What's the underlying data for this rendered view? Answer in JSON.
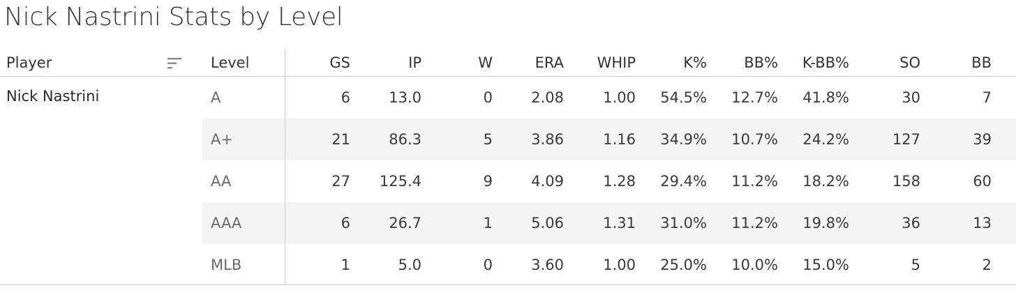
{
  "title": "Nick Nastrini Stats by Level",
  "headers": {
    "player": "Player",
    "level": "Level",
    "gs": "GS",
    "ip": "IP",
    "w": "W",
    "era": "ERA",
    "whip": "WHIP",
    "k_pct": "K%",
    "bb_pct": "BB%",
    "k_bb_pct": "K-BB%",
    "so": "SO",
    "bb": "BB"
  },
  "sort_icon": "sort-icon",
  "player": "Nick Nastrini",
  "rows": [
    {
      "level": "A",
      "gs": "6",
      "ip": "13.0",
      "w": "0",
      "era": "2.08",
      "whip": "1.00",
      "k_pct": "54.5%",
      "bb_pct": "12.7%",
      "k_bb_pct": "41.8%",
      "so": "30",
      "bb": "7"
    },
    {
      "level": "A+",
      "gs": "21",
      "ip": "86.3",
      "w": "5",
      "era": "3.86",
      "whip": "1.16",
      "k_pct": "34.9%",
      "bb_pct": "10.7%",
      "k_bb_pct": "24.2%",
      "so": "127",
      "bb": "39"
    },
    {
      "level": "AA",
      "gs": "27",
      "ip": "125.4",
      "w": "9",
      "era": "4.09",
      "whip": "1.28",
      "k_pct": "29.4%",
      "bb_pct": "11.2%",
      "k_bb_pct": "18.2%",
      "so": "158",
      "bb": "60"
    },
    {
      "level": "AAA",
      "gs": "6",
      "ip": "26.7",
      "w": "1",
      "era": "5.06",
      "whip": "1.31",
      "k_pct": "31.0%",
      "bb_pct": "11.2%",
      "k_bb_pct": "19.8%",
      "so": "36",
      "bb": "13"
    },
    {
      "level": "MLB",
      "gs": "1",
      "ip": "5.0",
      "w": "0",
      "era": "3.60",
      "whip": "1.00",
      "k_pct": "25.0%",
      "bb_pct": "10.0%",
      "k_bb_pct": "15.0%",
      "so": "5",
      "bb": "2"
    }
  ]
}
